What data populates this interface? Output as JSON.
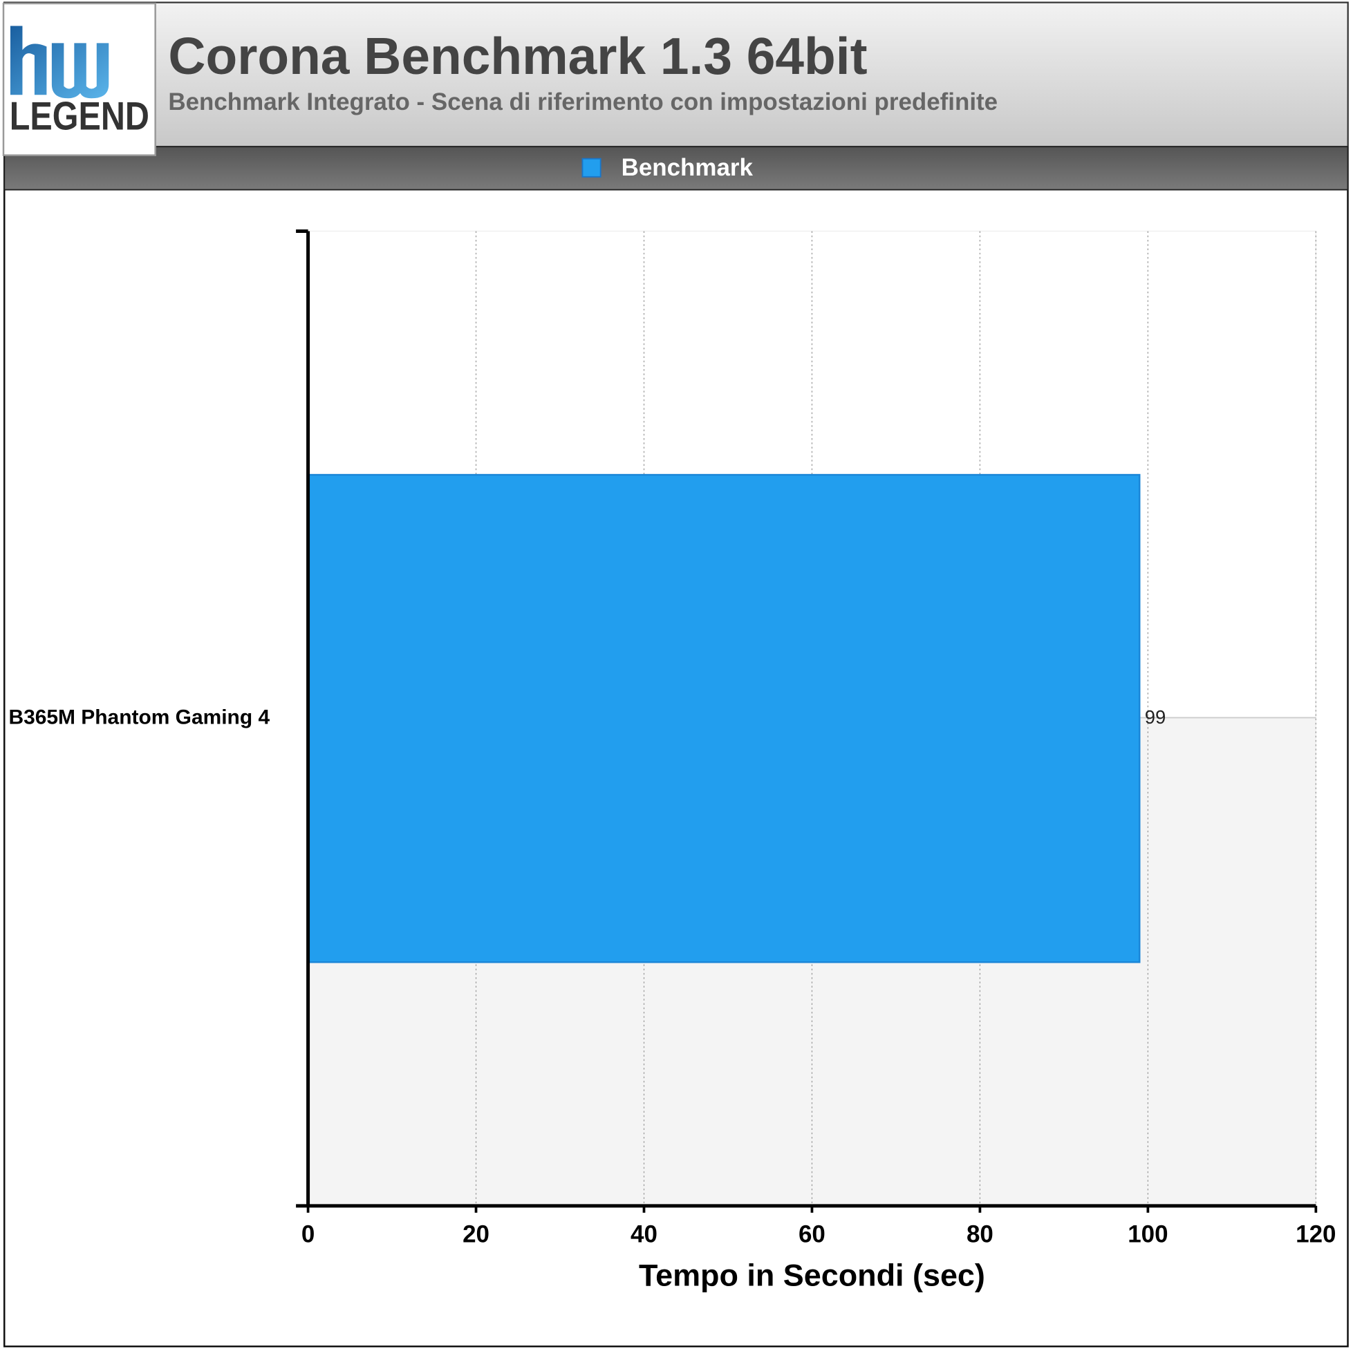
{
  "chart_data": {
    "type": "bar",
    "orientation": "horizontal",
    "title": "Corona Benchmark 1.3 64bit",
    "subtitle": "Benchmark Integrato - Scena di riferimento con impostazioni predefinite",
    "logo_text": "LEGEND",
    "categories": [
      "B365M Phantom Gaming 4"
    ],
    "series": [
      {
        "name": "Benchmark",
        "color": "#229eee",
        "values": [
          99
        ]
      }
    ],
    "xlabel": "Tempo in Secondi (sec)",
    "xlim": [
      0,
      120
    ],
    "xticks": [
      0,
      20,
      40,
      60,
      80,
      100,
      120
    ],
    "grid": true
  }
}
